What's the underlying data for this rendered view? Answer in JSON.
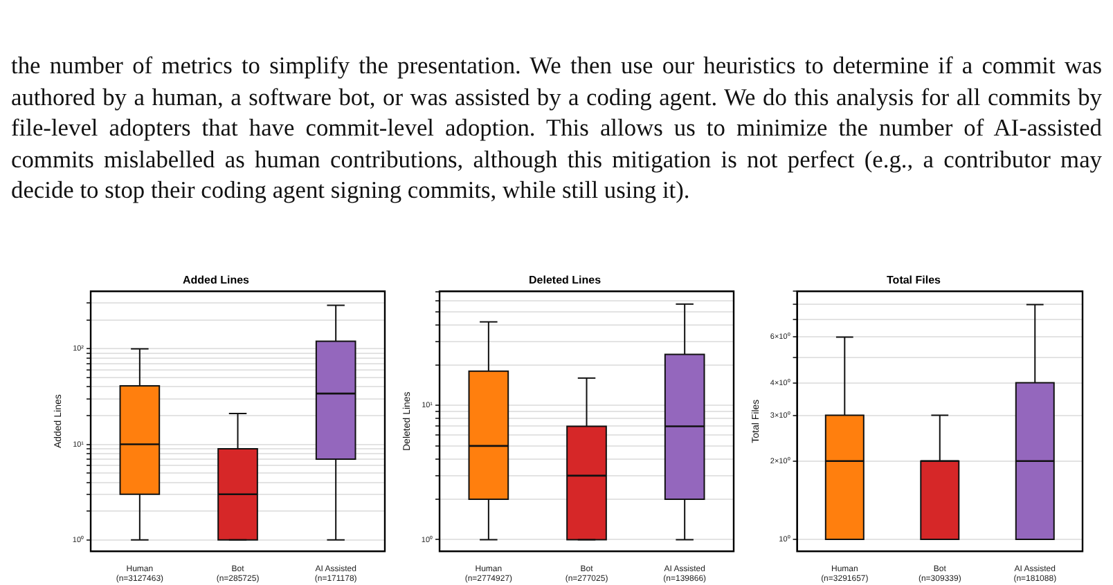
{
  "chart_data": [
    {
      "type": "box",
      "title": "Added Lines",
      "ylabel": "Added Lines",
      "annotations": [
        "the number of metrics to simplify the presentation. We then use our heuristics to determine if a commit was authored by a human, a software bot, or was assisted by a coding agent. We do this analysis for all commits by file-level adopters that have commit-level adoption. This allows us to minimize the number of AI-assisted commits mislabelled as human contributions, although this mitigation is not perfect (e.g., a contributor may decide to stop their coding agent signing commits, while still using it)."
      ],
      "categories": [
        "Human\n(n=3127463)",
        "Bot\n(n=285725)",
        "AI Assisted\n(n=171178)"
      ],
      "colors": [
        "#ff7f0e",
        "#d62728",
        "#9467bd"
      ],
      "boxes": [
        {
          "low": 1,
          "q1": 3,
          "median": 10,
          "q3": 41,
          "high": 100
        },
        {
          "low": 1,
          "q1": 1,
          "median": 3,
          "q3": 9,
          "high": 21
        },
        {
          "low": 1,
          "q1": 7,
          "median": 34,
          "q3": 120,
          "high": 285
        }
      ],
      "log": true,
      "grid": "y",
      "ylim": [
        0.76,
        400
      ],
      "yticks": [
        {
          "value": 1,
          "label": "10⁰"
        },
        {
          "value": 2,
          "label": null
        },
        {
          "value": 3,
          "label": null
        },
        {
          "value": 4,
          "label": null
        },
        {
          "value": 5,
          "label": null
        },
        {
          "value": 6,
          "label": null
        },
        {
          "value": 7,
          "label": null
        },
        {
          "value": 8,
          "label": null
        },
        {
          "value": 9,
          "label": null
        },
        {
          "value": 10,
          "label": "10¹"
        },
        {
          "value": 20,
          "label": null
        },
        {
          "value": 30,
          "label": null
        },
        {
          "value": 40,
          "label": null
        },
        {
          "value": 50,
          "label": null
        },
        {
          "value": 60,
          "label": null
        },
        {
          "value": 70,
          "label": null
        },
        {
          "value": 80,
          "label": null
        },
        {
          "value": 90,
          "label": null
        },
        {
          "value": 100,
          "label": "10²"
        },
        {
          "value": 200,
          "label": null
        },
        {
          "value": 300,
          "label": null
        }
      ]
    },
    {
      "type": "box",
      "title": "Deleted Lines",
      "ylabel": "Deleted Lines",
      "categories": [
        "Human\n(n=2774927)",
        "Bot\n(n=277025)",
        "AI Assisted\n(n=139866)"
      ],
      "colors": [
        "#ff7f0e",
        "#d62728",
        "#9467bd"
      ],
      "boxes": [
        {
          "low": 1,
          "q1": 2,
          "median": 5,
          "q3": 18,
          "high": 42
        },
        {
          "low": 1,
          "q1": 1,
          "median": 3,
          "q3": 7,
          "high": 16
        },
        {
          "low": 1,
          "q1": 2,
          "median": 7,
          "q3": 24,
          "high": 57
        }
      ],
      "log": true,
      "grid": "y",
      "ylim": [
        0.82,
        71
      ],
      "yticks": [
        {
          "value": 1,
          "label": "10⁰"
        },
        {
          "value": 2,
          "label": null
        },
        {
          "value": 3,
          "label": null
        },
        {
          "value": 4,
          "label": null
        },
        {
          "value": 5,
          "label": null
        },
        {
          "value": 6,
          "label": null
        },
        {
          "value": 7,
          "label": null
        },
        {
          "value": 8,
          "label": null
        },
        {
          "value": 9,
          "label": null
        },
        {
          "value": 10,
          "label": "10¹"
        },
        {
          "value": 20,
          "label": null
        },
        {
          "value": 30,
          "label": null
        },
        {
          "value": 40,
          "label": null
        },
        {
          "value": 50,
          "label": null
        },
        {
          "value": 60,
          "label": null
        },
        {
          "value": 70,
          "label": null
        }
      ]
    },
    {
      "type": "box",
      "title": "Total Files",
      "ylabel": "Total Files",
      "categories": [
        "Human\n(n=3291657)",
        "Bot\n(n=309339)",
        "AI Assisted\n(n=181088)"
      ],
      "colors": [
        "#ff7f0e",
        "#d62728",
        "#9467bd"
      ],
      "boxes": [
        {
          "low": 1,
          "q1": 1,
          "median": 2,
          "q3": 3,
          "high": 6
        },
        {
          "low": 1,
          "q1": 1,
          "median": 2,
          "q3": 2,
          "high": 3
        },
        {
          "low": 1,
          "q1": 1,
          "median": 2,
          "q3": 4,
          "high": 8
        }
      ],
      "log": true,
      "grid": "y",
      "ylim": [
        0.9,
        9
      ],
      "yticks": [
        {
          "value": 1,
          "label": "10⁰"
        },
        {
          "value": 2,
          "label": "2×10⁰"
        },
        {
          "value": 3,
          "label": "3×10⁰"
        },
        {
          "value": 4,
          "label": "4×10⁰"
        },
        {
          "value": 5,
          "label": null
        },
        {
          "value": 6,
          "label": "6×10⁰"
        },
        {
          "value": 7,
          "label": null
        },
        {
          "value": 8,
          "label": null
        },
        {
          "value": 9,
          "label": null
        }
      ]
    }
  ]
}
